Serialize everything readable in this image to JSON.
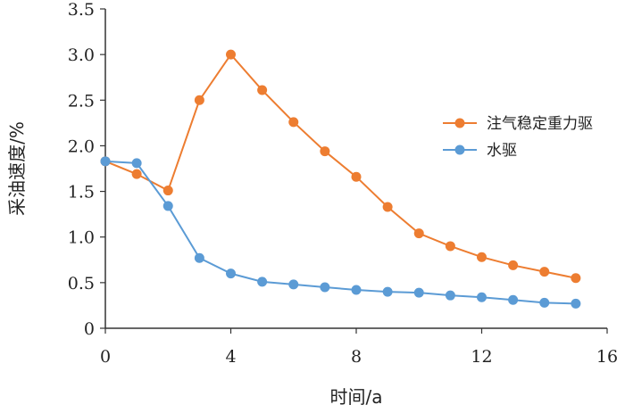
{
  "chart_data": {
    "type": "line",
    "title": "",
    "xlabel": "时间/a",
    "ylabel": "采油速度/%",
    "xlim": [
      0,
      16
    ],
    "ylim": [
      0,
      3.5
    ],
    "xticks": [
      "0",
      "4",
      "8",
      "12",
      "16"
    ],
    "yticks": [
      "0",
      "0.5",
      "1.0",
      "1.5",
      "2.0",
      "2.5",
      "3.0",
      "3.5"
    ],
    "grid": false,
    "legend_position": "right",
    "series": [
      {
        "name": "注气稳定重力驱",
        "color": "#ED7D31",
        "x": [
          0,
          1,
          2,
          3,
          4,
          5,
          6,
          7,
          8,
          9,
          10,
          11,
          12,
          13,
          14,
          15
        ],
        "y": [
          1.83,
          1.69,
          1.51,
          2.5,
          3.0,
          2.61,
          2.26,
          1.94,
          1.66,
          1.33,
          1.04,
          0.9,
          0.78,
          0.69,
          0.62,
          0.55
        ]
      },
      {
        "name": "水驱",
        "color": "#5B9BD5",
        "x": [
          0,
          1,
          2,
          3,
          4,
          5,
          6,
          7,
          8,
          9,
          10,
          11,
          12,
          13,
          14,
          15
        ],
        "y": [
          1.83,
          1.81,
          1.34,
          0.77,
          0.6,
          0.51,
          0.48,
          0.45,
          0.42,
          0.4,
          0.39,
          0.36,
          0.34,
          0.31,
          0.28,
          0.27
        ]
      }
    ]
  }
}
